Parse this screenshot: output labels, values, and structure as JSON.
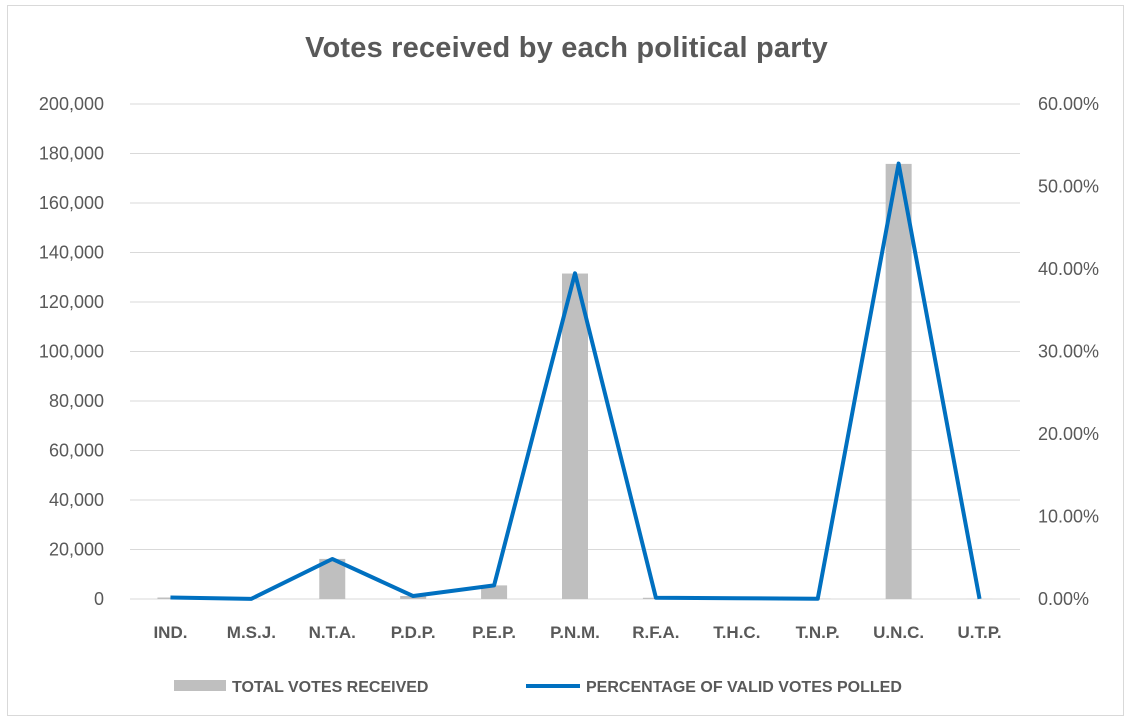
{
  "chart_data": {
    "type": "bar",
    "title": "Votes received by each political party",
    "categories": [
      "IND.",
      "M.S.J.",
      "N.T.A.",
      "P.D.P.",
      "P.E.P.",
      "P.N.M.",
      "R.F.A.",
      "T.H.C.",
      "T.N.P.",
      "U.N.C.",
      "U.T.P."
    ],
    "series": [
      {
        "name": "TOTAL VOTES RECEIVED",
        "type": "bar",
        "axis": "left",
        "color": "#bfbfbf",
        "values": [
          600,
          80,
          16200,
          1200,
          5500,
          131500,
          500,
          300,
          100,
          175800,
          30
        ]
      },
      {
        "name": "PERCENTAGE OF VALID VOTES POLLED",
        "type": "line",
        "axis": "right",
        "color": "#0070c0",
        "values": [
          0.0018,
          0.0002,
          0.0485,
          0.0036,
          0.0165,
          0.3948,
          0.0015,
          0.0009,
          0.0003,
          0.5278,
          0.0001
        ]
      }
    ],
    "y_left": {
      "min": 0,
      "max": 200000,
      "step": 20000,
      "ticks": [
        "0",
        "20,000",
        "40,000",
        "60,000",
        "80,000",
        "100,000",
        "120,000",
        "140,000",
        "160,000",
        "180,000",
        "200,000"
      ]
    },
    "y_right": {
      "min": 0,
      "max": 0.6,
      "step": 0.1,
      "ticks": [
        "0.00%",
        "10.00%",
        "20.00%",
        "30.00%",
        "40.00%",
        "50.00%",
        "60.00%"
      ]
    },
    "grid": true,
    "legend_position": "bottom"
  }
}
